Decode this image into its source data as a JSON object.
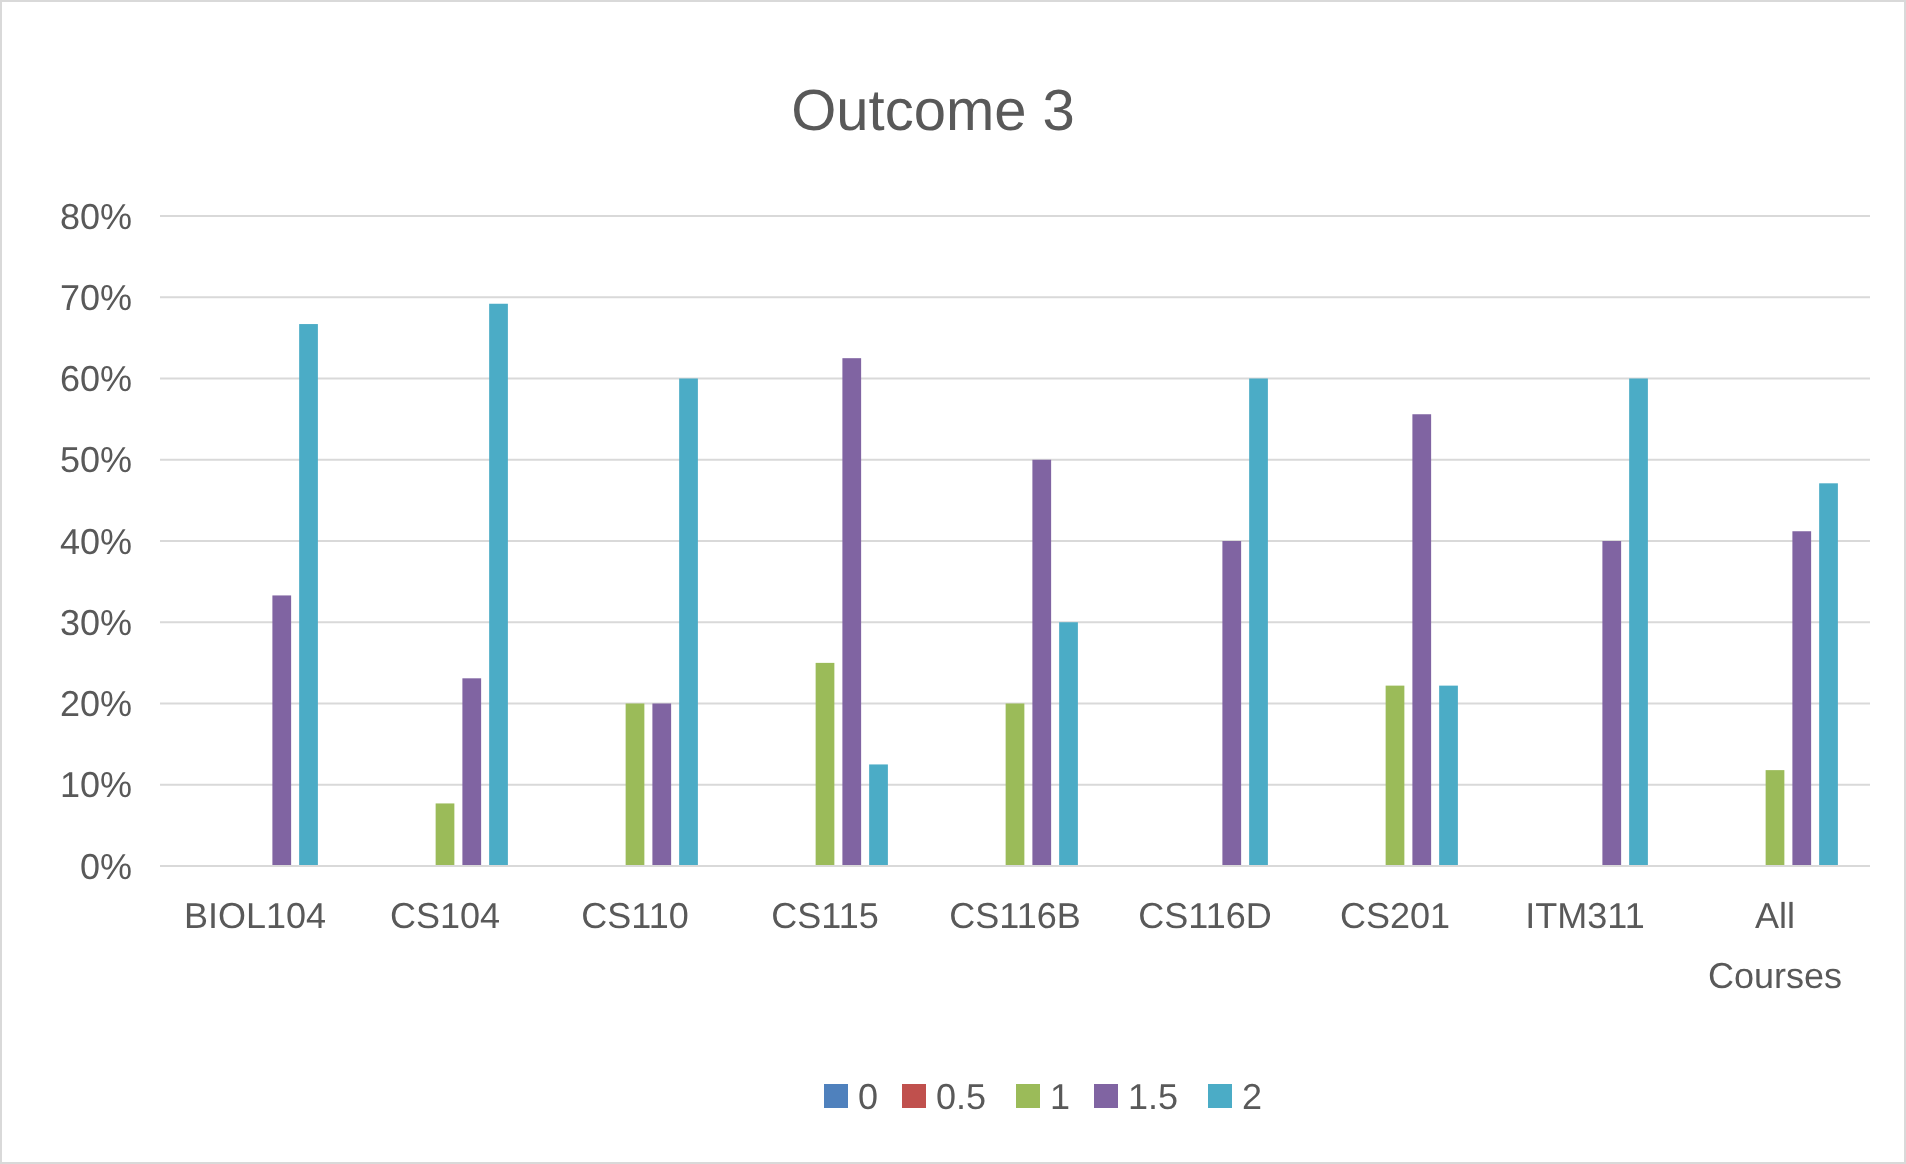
{
  "chart_data": {
    "type": "bar",
    "title": "Outcome 3",
    "categories": [
      "BIOL104",
      "CS104",
      "CS110",
      "CS115",
      "CS116B",
      "CS116D",
      "CS201",
      "ITM311",
      "All Courses"
    ],
    "series": [
      {
        "name": "0",
        "color": "#4f81bd",
        "values": [
          0,
          0,
          0,
          0,
          0,
          0,
          0,
          0,
          0
        ]
      },
      {
        "name": "0.5",
        "color": "#c0504d",
        "values": [
          0,
          0,
          0,
          0,
          0,
          0,
          0,
          0,
          0
        ]
      },
      {
        "name": "1",
        "color": "#9bbb59",
        "values": [
          0,
          7.7,
          20,
          25,
          20,
          0,
          22.2,
          0,
          11.8
        ]
      },
      {
        "name": "1.5",
        "color": "#8064a2",
        "values": [
          33.3,
          23.1,
          20,
          62.5,
          50,
          40,
          55.6,
          40,
          41.2
        ]
      },
      {
        "name": "2",
        "color": "#4bacc6",
        "values": [
          66.7,
          69.2,
          60,
          12.5,
          30,
          60,
          22.2,
          60,
          47.1
        ]
      }
    ],
    "ylim": [
      0,
      80
    ],
    "yticks": [
      {
        "value": 0,
        "label": "0%"
      },
      {
        "value": 10,
        "label": "10%"
      },
      {
        "value": 20,
        "label": "20%"
      },
      {
        "value": 30,
        "label": "30%"
      },
      {
        "value": 40,
        "label": "40%"
      },
      {
        "value": 50,
        "label": "50%"
      },
      {
        "value": 60,
        "label": "60%"
      },
      {
        "value": 70,
        "label": "70%"
      },
      {
        "value": 80,
        "label": "80%"
      }
    ],
    "grid": "y",
    "legend": "bottom"
  }
}
